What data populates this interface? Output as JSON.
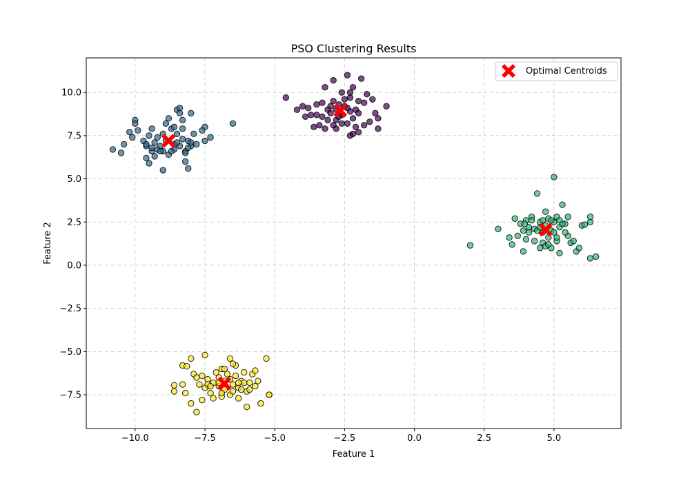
{
  "chart_data": {
    "type": "scatter",
    "title": "PSO Clustering Results",
    "xlabel": "Feature 1",
    "ylabel": "Feature 2",
    "xlim": [
      -11.75,
      7.4
    ],
    "ylim": [
      -9.45,
      12.0
    ],
    "x_ticks": [
      -10.0,
      -7.5,
      -5.0,
      -2.5,
      0.0,
      2.5,
      5.0
    ],
    "x_tick_labels": [
      "−10.0",
      "−7.5",
      "−5.0",
      "−2.5",
      "0.0",
      "2.5",
      "5.0"
    ],
    "y_ticks": [
      -7.5,
      -5.0,
      -2.5,
      0.0,
      2.5,
      5.0,
      7.5,
      10.0
    ],
    "y_tick_labels": [
      "−7.5",
      "−5.0",
      "−2.5",
      "0.0",
      "2.5",
      "5.0",
      "7.5",
      "10.0"
    ],
    "grid": true,
    "legend_position": "top-right",
    "legend": [
      "Optimal Centroids"
    ],
    "colors": {
      "cluster_purple": "#440154",
      "cluster_blue": "#31688e",
      "cluster_green": "#35b779",
      "cluster_yellow": "#fde725",
      "centroid": "#ff0000",
      "grid": "#cccccc"
    },
    "clusters": [
      {
        "color": "cluster_purple",
        "points": [
          [
            -4.6,
            9.7
          ],
          [
            -4.2,
            9.0
          ],
          [
            -4.0,
            9.2
          ],
          [
            -3.9,
            8.6
          ],
          [
            -3.8,
            9.1
          ],
          [
            -3.7,
            8.7
          ],
          [
            -3.6,
            8.0
          ],
          [
            -3.5,
            9.3
          ],
          [
            -3.4,
            8.1
          ],
          [
            -3.3,
            9.4
          ],
          [
            -3.3,
            8.6
          ],
          [
            -3.2,
            7.9
          ],
          [
            -3.2,
            10.3
          ],
          [
            -3.1,
            9.0
          ],
          [
            -3.0,
            8.8
          ],
          [
            -2.9,
            10.7
          ],
          [
            -2.9,
            9.5
          ],
          [
            -2.8,
            8.4
          ],
          [
            -2.8,
            7.9
          ],
          [
            -2.7,
            9.3
          ],
          [
            -2.6,
            8.7
          ],
          [
            -2.6,
            10.0
          ],
          [
            -2.5,
            9.2
          ],
          [
            -2.4,
            8.2
          ],
          [
            -2.4,
            11.0
          ],
          [
            -2.3,
            7.5
          ],
          [
            -2.3,
            9.7
          ],
          [
            -2.2,
            8.5
          ],
          [
            -2.2,
            10.3
          ],
          [
            -2.1,
            9.0
          ],
          [
            -2.0,
            8.8
          ],
          [
            -2.0,
            7.7
          ],
          [
            -1.9,
            10.8
          ],
          [
            -1.8,
            9.4
          ],
          [
            -1.8,
            8.1
          ],
          [
            -1.7,
            9.9
          ],
          [
            -1.6,
            8.3
          ],
          [
            -1.5,
            9.6
          ],
          [
            -1.4,
            8.8
          ],
          [
            -1.3,
            7.9
          ],
          [
            -1.3,
            8.5
          ],
          [
            -1.0,
            9.2
          ],
          [
            -3.0,
            9.2
          ],
          [
            -2.7,
            8.6
          ],
          [
            -2.5,
            9.6
          ],
          [
            -2.3,
            8.9
          ],
          [
            -2.1,
            8.0
          ],
          [
            -2.0,
            9.5
          ],
          [
            -3.5,
            8.7
          ],
          [
            -2.8,
            9.0
          ],
          [
            -2.6,
            8.2
          ],
          [
            -2.4,
            9.1
          ],
          [
            -2.2,
            7.6
          ],
          [
            -2.9,
            8.1
          ],
          [
            -2.3,
            10.0
          ],
          [
            -3.1,
            8.4
          ]
        ]
      },
      {
        "color": "cluster_blue",
        "points": [
          [
            -10.8,
            6.7
          ],
          [
            -10.5,
            6.5
          ],
          [
            -10.4,
            7.0
          ],
          [
            -10.2,
            7.7
          ],
          [
            -10.1,
            7.4
          ],
          [
            -10.0,
            8.4
          ],
          [
            -10.0,
            8.2
          ],
          [
            -9.9,
            7.8
          ],
          [
            -9.7,
            7.2
          ],
          [
            -9.6,
            6.9
          ],
          [
            -9.6,
            6.2
          ],
          [
            -9.5,
            5.9
          ],
          [
            -9.5,
            7.5
          ],
          [
            -9.4,
            7.9
          ],
          [
            -9.4,
            6.6
          ],
          [
            -9.3,
            7.1
          ],
          [
            -9.3,
            6.3
          ],
          [
            -9.2,
            6.7
          ],
          [
            -9.2,
            7.4
          ],
          [
            -9.1,
            6.9
          ],
          [
            -9.0,
            5.5
          ],
          [
            -9.0,
            6.6
          ],
          [
            -8.9,
            7.2
          ],
          [
            -8.8,
            8.5
          ],
          [
            -8.8,
            6.4
          ],
          [
            -8.7,
            7.9
          ],
          [
            -8.6,
            7.0
          ],
          [
            -8.6,
            6.7
          ],
          [
            -8.5,
            9.0
          ],
          [
            -8.5,
            7.6
          ],
          [
            -8.4,
            8.8
          ],
          [
            -8.4,
            6.9
          ],
          [
            -8.3,
            7.3
          ],
          [
            -8.3,
            8.4
          ],
          [
            -8.2,
            6.0
          ],
          [
            -8.2,
            6.6
          ],
          [
            -8.1,
            5.6
          ],
          [
            -8.1,
            7.2
          ],
          [
            -8.0,
            8.8
          ],
          [
            -8.0,
            6.9
          ],
          [
            -7.9,
            7.6
          ],
          [
            -7.8,
            7.0
          ],
          [
            -7.6,
            7.8
          ],
          [
            -7.5,
            8.0
          ],
          [
            -7.5,
            7.2
          ],
          [
            -7.3,
            7.4
          ],
          [
            -6.5,
            8.2
          ],
          [
            -9.6,
            7.0
          ],
          [
            -9.0,
            7.6
          ],
          [
            -8.7,
            6.6
          ],
          [
            -8.5,
            7.1
          ],
          [
            -8.3,
            7.9
          ],
          [
            -8.2,
            6.5
          ],
          [
            -8.0,
            7.1
          ],
          [
            -9.4,
            6.8
          ],
          [
            -8.9,
            8.2
          ],
          [
            -8.6,
            8.0
          ],
          [
            -8.4,
            9.1
          ],
          [
            -9.1,
            6.6
          ],
          [
            -8.1,
            6.8
          ]
        ]
      },
      {
        "color": "cluster_green",
        "points": [
          [
            2.0,
            1.15
          ],
          [
            3.0,
            2.1
          ],
          [
            3.4,
            1.6
          ],
          [
            3.5,
            1.2
          ],
          [
            3.6,
            2.7
          ],
          [
            3.7,
            1.7
          ],
          [
            3.8,
            2.4
          ],
          [
            3.9,
            2.0
          ],
          [
            3.9,
            0.8
          ],
          [
            4.0,
            1.5
          ],
          [
            4.0,
            2.6
          ],
          [
            4.1,
            2.2
          ],
          [
            4.2,
            2.8
          ],
          [
            4.3,
            1.4
          ],
          [
            4.3,
            2.1
          ],
          [
            4.4,
            4.15
          ],
          [
            4.5,
            2.5
          ],
          [
            4.5,
            1.0
          ],
          [
            4.6,
            1.9
          ],
          [
            4.6,
            1.3
          ],
          [
            4.7,
            3.1
          ],
          [
            4.7,
            2.3
          ],
          [
            4.8,
            1.6
          ],
          [
            4.8,
            2.7
          ],
          [
            4.9,
            1.0
          ],
          [
            4.9,
            2.0
          ],
          [
            5.0,
            5.1
          ],
          [
            5.0,
            2.5
          ],
          [
            5.1,
            1.4
          ],
          [
            5.1,
            2.8
          ],
          [
            5.2,
            0.7
          ],
          [
            5.2,
            2.2
          ],
          [
            5.3,
            3.5
          ],
          [
            5.4,
            2.4
          ],
          [
            5.5,
            1.7
          ],
          [
            5.5,
            2.8
          ],
          [
            5.6,
            1.3
          ],
          [
            5.7,
            1.4
          ],
          [
            5.8,
            0.8
          ],
          [
            5.9,
            1.0
          ],
          [
            6.0,
            2.3
          ],
          [
            6.1,
            2.35
          ],
          [
            6.3,
            2.5
          ],
          [
            6.3,
            0.4
          ],
          [
            6.5,
            0.5
          ],
          [
            6.3,
            2.8
          ],
          [
            4.2,
            2.6
          ],
          [
            4.4,
            2.0
          ],
          [
            4.7,
            1.1
          ],
          [
            4.9,
            2.6
          ],
          [
            5.1,
            1.6
          ],
          [
            5.3,
            2.4
          ],
          [
            4.1,
            1.9
          ],
          [
            4.5,
            2.2
          ],
          [
            4.8,
            1.2
          ],
          [
            5.0,
            1.9
          ],
          [
            5.4,
            1.9
          ],
          [
            3.95,
            2.4
          ],
          [
            4.6,
            2.6
          ],
          [
            5.2,
            2.6
          ]
        ]
      },
      {
        "color": "cluster_yellow",
        "points": [
          [
            -8.6,
            -7.3
          ],
          [
            -8.6,
            -6.95
          ],
          [
            -8.3,
            -6.9
          ],
          [
            -8.3,
            -5.8
          ],
          [
            -8.2,
            -7.4
          ],
          [
            -8.15,
            -5.85
          ],
          [
            -8.0,
            -8.0
          ],
          [
            -8.0,
            -5.4
          ],
          [
            -7.9,
            -6.3
          ],
          [
            -7.8,
            -8.5
          ],
          [
            -7.7,
            -6.9
          ],
          [
            -7.6,
            -7.8
          ],
          [
            -7.6,
            -6.4
          ],
          [
            -7.5,
            -5.2
          ],
          [
            -7.5,
            -7.1
          ],
          [
            -7.4,
            -6.6
          ],
          [
            -7.3,
            -7.4
          ],
          [
            -7.2,
            -6.8
          ],
          [
            -7.2,
            -7.7
          ],
          [
            -7.1,
            -6.2
          ],
          [
            -7.0,
            -7.0
          ],
          [
            -7.0,
            -6.5
          ],
          [
            -6.9,
            -6.0
          ],
          [
            -6.9,
            -7.6
          ],
          [
            -6.8,
            -6.7
          ],
          [
            -6.8,
            -7.2
          ],
          [
            -6.7,
            -6.3
          ],
          [
            -6.6,
            -7.5
          ],
          [
            -6.6,
            -5.4
          ],
          [
            -6.5,
            -6.9
          ],
          [
            -6.5,
            -7.3
          ],
          [
            -6.4,
            -5.8
          ],
          [
            -6.4,
            -6.4
          ],
          [
            -6.3,
            -7.1
          ],
          [
            -6.3,
            -7.7
          ],
          [
            -6.2,
            -6.7
          ],
          [
            -6.1,
            -6.2
          ],
          [
            -6.0,
            -7.3
          ],
          [
            -6.0,
            -8.2
          ],
          [
            -5.9,
            -6.8
          ],
          [
            -5.8,
            -6.3
          ],
          [
            -5.7,
            -7.0
          ],
          [
            -5.7,
            -6.1
          ],
          [
            -5.6,
            -6.7
          ],
          [
            -5.5,
            -8.0
          ],
          [
            -5.3,
            -5.4
          ],
          [
            -5.2,
            -7.5
          ],
          [
            -5.2,
            -7.5
          ],
          [
            -7.8,
            -6.5
          ],
          [
            -7.4,
            -6.9
          ],
          [
            -7.0,
            -6.8
          ],
          [
            -6.8,
            -6.0
          ],
          [
            -6.6,
            -6.6
          ],
          [
            -6.2,
            -7.2
          ],
          [
            -5.9,
            -7.2
          ],
          [
            -7.3,
            -7.0
          ],
          [
            -6.9,
            -7.4
          ],
          [
            -6.5,
            -5.7
          ],
          [
            -6.3,
            -6.8
          ],
          [
            -6.1,
            -6.8
          ]
        ]
      }
    ],
    "centroids": {
      "name": "Optimal Centroids",
      "points": [
        [
          -8.8,
          7.2
        ],
        [
          -2.65,
          8.95
        ],
        [
          4.7,
          2.05
        ],
        [
          -6.8,
          -6.85
        ]
      ]
    }
  }
}
